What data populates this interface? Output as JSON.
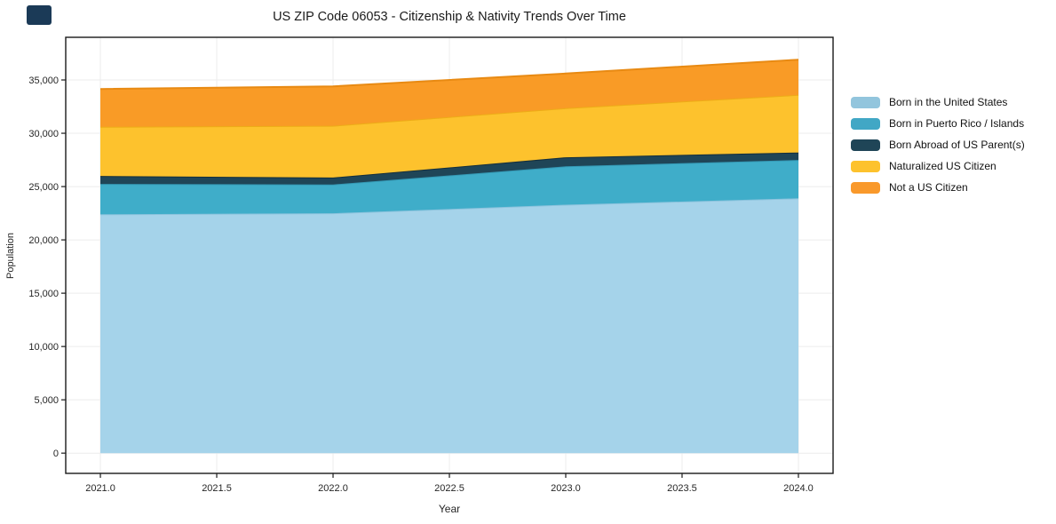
{
  "page": {
    "background": "#ffffff"
  },
  "corner_badge": {
    "color": "#1b3a57"
  },
  "chart_data": {
    "type": "area",
    "stacked": true,
    "title": "US ZIP Code 06053 - Citizenship & Nativity Trends Over Time",
    "xlabel": "Year",
    "ylabel": "Population",
    "x": [
      2021,
      2022,
      2023,
      2024
    ],
    "series": [
      {
        "name": "Born in the United States",
        "fill": "#a5d3ea",
        "line": "#8cc3dd",
        "swatch": "#92c5dd",
        "values": [
          22400,
          22500,
          23300,
          23900
        ]
      },
      {
        "name": "Born in Puerto Rico / Islands",
        "fill": "#3fadc9",
        "line": "#3498b4",
        "swatch": "#41a7c5",
        "values": [
          2850,
          2700,
          3600,
          3600
        ]
      },
      {
        "name": "Born Abroad of US Parent(s)",
        "fill": "#1f4557",
        "line": "#152f3c",
        "swatch": "#1f4557",
        "values": [
          750,
          650,
          850,
          700
        ]
      },
      {
        "name": "Naturalized US Citizen",
        "fill": "#fdc22d",
        "line": "#edac17",
        "swatch": "#fdc22d",
        "values": [
          4600,
          4850,
          4600,
          5400
        ]
      },
      {
        "name": "Not a US Citizen",
        "fill": "#f99b26",
        "line": "#e88a13",
        "swatch": "#f9992b",
        "values": [
          3550,
          3700,
          3250,
          3300
        ]
      }
    ],
    "x_ticks": [
      {
        "value": 2021.0,
        "label": "2021.0"
      },
      {
        "value": 2021.5,
        "label": "2021.5"
      },
      {
        "value": 2022.0,
        "label": "2022.0"
      },
      {
        "value": 2022.5,
        "label": "2022.5"
      },
      {
        "value": 2023.0,
        "label": "2023.0"
      },
      {
        "value": 2023.5,
        "label": "2023.5"
      },
      {
        "value": 2024.0,
        "label": "2024.0"
      }
    ],
    "y_ticks": [
      {
        "value": 0,
        "label": "0"
      },
      {
        "value": 5000,
        "label": "5,000"
      },
      {
        "value": 10000,
        "label": "10,000"
      },
      {
        "value": 15000,
        "label": "15,000"
      },
      {
        "value": 20000,
        "label": "20,000"
      },
      {
        "value": 25000,
        "label": "25,000"
      },
      {
        "value": 30000,
        "label": "30,000"
      },
      {
        "value": 35000,
        "label": "35,000"
      }
    ],
    "x_range": [
      2020.851,
      2024.149
    ],
    "y_range": [
      -1900,
      39000
    ],
    "grid": true,
    "grid_color": "#ececec",
    "axis_color": "#1a1a1a",
    "legend_position": "right"
  }
}
